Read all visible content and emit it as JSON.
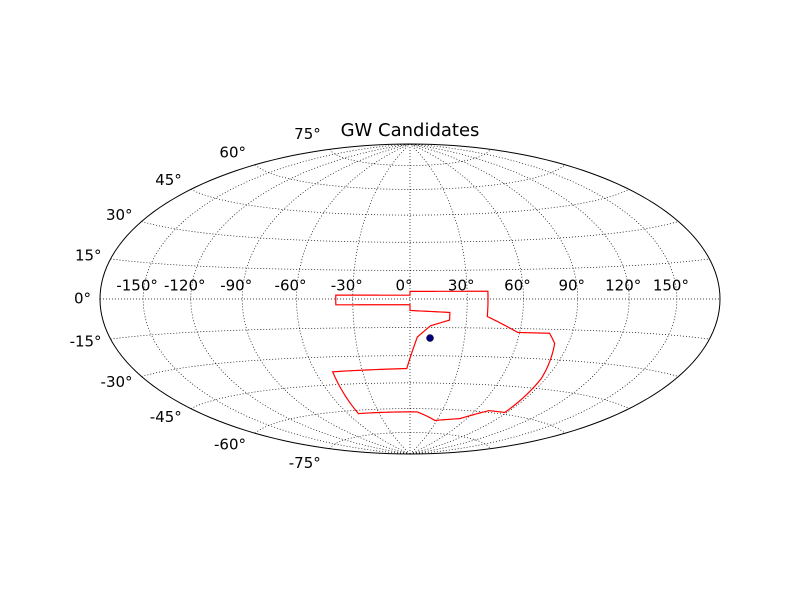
{
  "chart_data": {
    "type": "hammer",
    "title": "GW Candidates",
    "xticks": [
      {
        "value": -150,
        "label": "-150°"
      },
      {
        "value": -120,
        "label": "-120°"
      },
      {
        "value": -90,
        "label": "-90°"
      },
      {
        "value": -60,
        "label": "-60°"
      },
      {
        "value": -30,
        "label": "-30°"
      },
      {
        "value": 0,
        "label": "0°"
      },
      {
        "value": 30,
        "label": "30°"
      },
      {
        "value": 60,
        "label": "60°"
      },
      {
        "value": 90,
        "label": "90°"
      },
      {
        "value": 120,
        "label": "120°"
      },
      {
        "value": 150,
        "label": "150°"
      }
    ],
    "yticks": [
      {
        "value": -75,
        "label": "-75°"
      },
      {
        "value": -60,
        "label": "-60°"
      },
      {
        "value": -45,
        "label": "-45°"
      },
      {
        "value": -30,
        "label": "-30°"
      },
      {
        "value": -15,
        "label": "-15°"
      },
      {
        "value": 0,
        "label": "0°"
      },
      {
        "value": 15,
        "label": "15°"
      },
      {
        "value": 30,
        "label": "30°"
      },
      {
        "value": 45,
        "label": "45°"
      },
      {
        "value": 60,
        "label": "60°"
      },
      {
        "value": 75,
        "label": "75°"
      }
    ],
    "xlim": [
      -180,
      180
    ],
    "ylim": [
      -90,
      90
    ],
    "grid": true,
    "series": [
      {
        "color": "#ff0000",
        "closed": true,
        "x": [
          0,
          41,
          41,
          59,
          77,
          82,
          87,
          88,
          72,
          53,
          28,
          7,
          -50,
          -49,
          -2,
          4,
          11,
          21,
          21,
          0,
          0,
          -39,
          -39,
          0
        ],
        "y": [
          4,
          4,
          -9,
          -17,
          -17,
          -22,
          -40,
          -59,
          -59,
          -65,
          -67,
          -62,
          -62,
          -38,
          -37,
          -20,
          -14,
          -11,
          -7,
          -6,
          -3,
          -3,
          2,
          2
        ]
      },
      {
        "color": "#000080",
        "marker": true,
        "x": [
          11
        ],
        "y": [
          -20.5
        ]
      }
    ]
  }
}
